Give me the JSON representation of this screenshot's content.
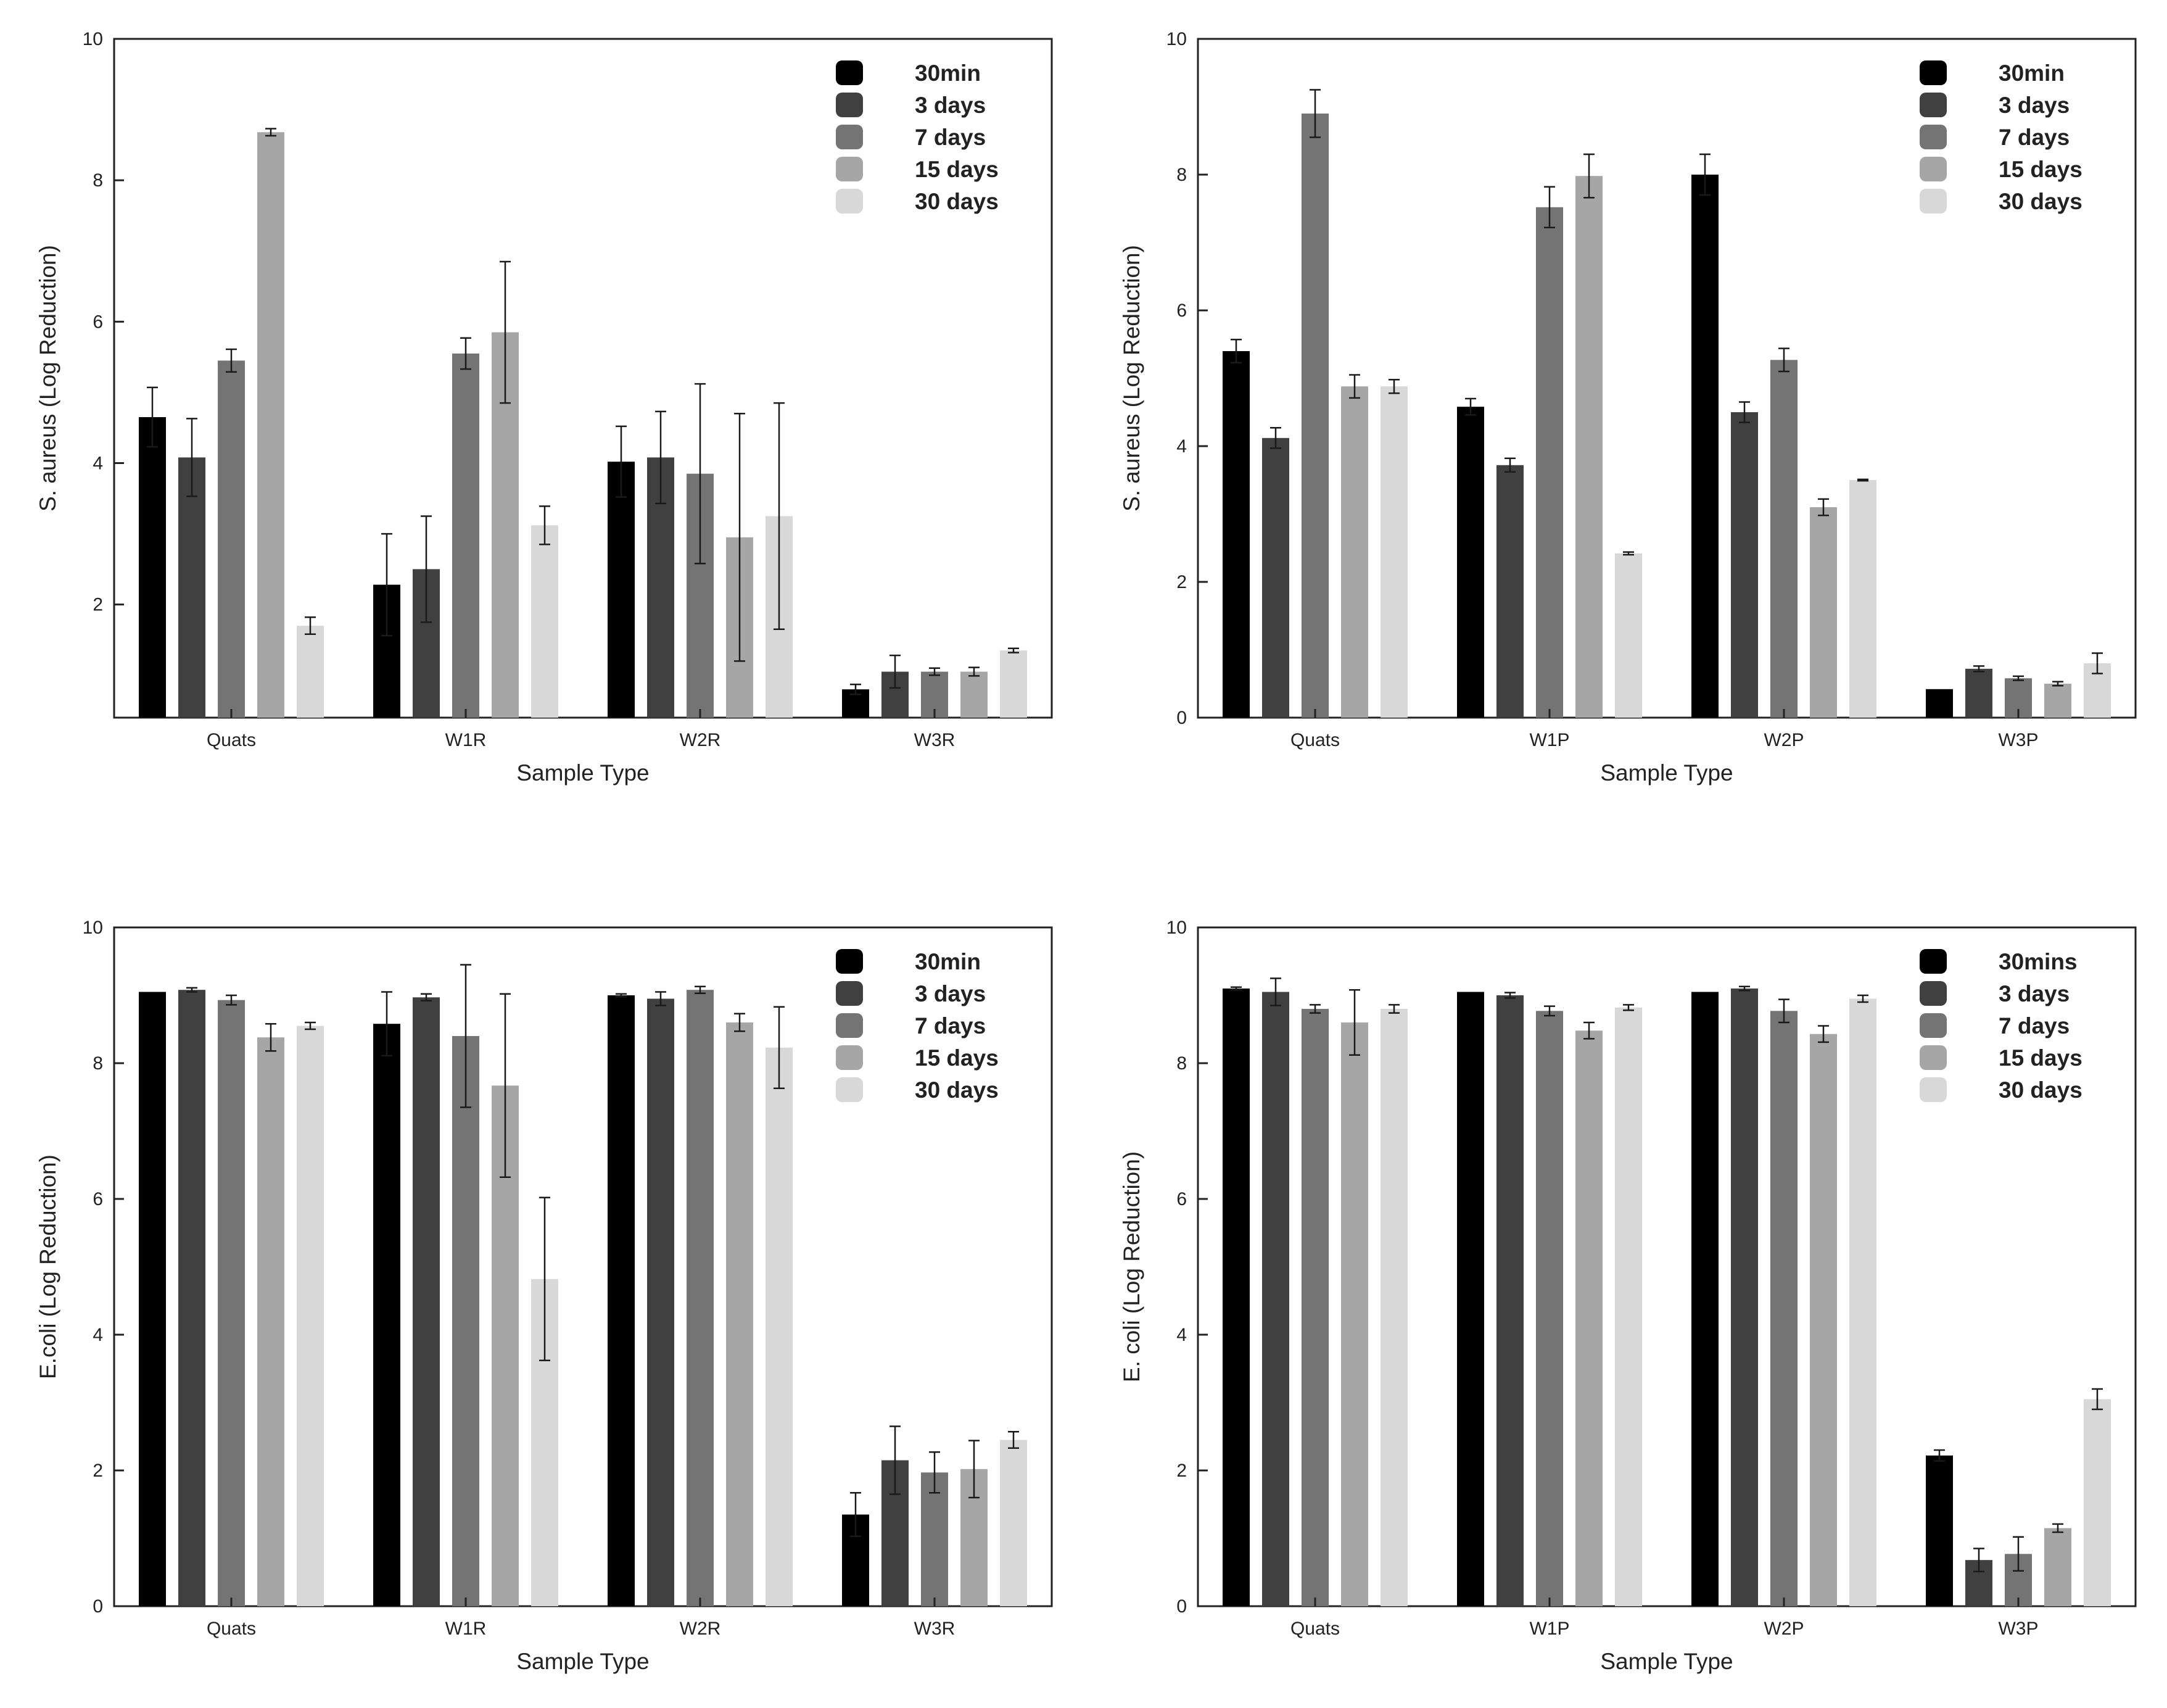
{
  "chart_data": [
    {
      "type": "bar",
      "title": "",
      "xlabel": "Sample Type",
      "ylabel": "S. aureus (Log Reduction)",
      "ylim": [
        0.4,
        10
      ],
      "yticks": [
        2,
        4,
        6,
        8,
        10
      ],
      "ytick_labels": [
        "2",
        "4",
        "6",
        "8",
        "10"
      ],
      "categories": [
        "Quats",
        "W1R",
        "W2R",
        "W3R"
      ],
      "legend": {
        "position": "top-right"
      },
      "series": [
        {
          "name": "30min",
          "color": "#000000",
          "values": [
            4.65,
            2.28,
            4.02,
            0.8
          ],
          "errors": [
            0.42,
            0.72,
            0.5,
            0.07
          ]
        },
        {
          "name": "3 days",
          "color": "#404040",
          "values": [
            4.08,
            2.5,
            4.08,
            1.05
          ],
          "errors": [
            0.55,
            0.75,
            0.65,
            0.23
          ]
        },
        {
          "name": "7 days",
          "color": "#747474",
          "values": [
            5.45,
            5.55,
            3.85,
            1.05
          ],
          "errors": [
            0.16,
            0.22,
            1.27,
            0.05
          ]
        },
        {
          "name": "15 days",
          "color": "#a6a6a6",
          "values": [
            8.68,
            5.85,
            2.95,
            1.05
          ],
          "errors": [
            0.05,
            1.0,
            1.75,
            0.06
          ]
        },
        {
          "name": "30 days",
          "color": "#d8d8d8",
          "values": [
            1.7,
            3.12,
            3.25,
            1.35
          ],
          "errors": [
            0.12,
            0.27,
            1.6,
            0.03
          ]
        }
      ]
    },
    {
      "type": "bar",
      "title": "",
      "xlabel": "Sample Type",
      "ylabel": "S. aureus (Log Reduction)",
      "ylim": [
        0,
        10
      ],
      "yticks": [
        0,
        2,
        4,
        6,
        8,
        10
      ],
      "ytick_labels": [
        "0",
        "2",
        "4",
        "6",
        "8",
        "10"
      ],
      "categories": [
        "Quats",
        "W1P",
        "W2P",
        "W3P"
      ],
      "legend": {
        "position": "top-right"
      },
      "series": [
        {
          "name": "30min",
          "color": "#000000",
          "values": [
            5.4,
            4.58,
            8.0,
            0.42
          ],
          "errors": [
            0.17,
            0.12,
            0.3,
            0.0
          ]
        },
        {
          "name": "3 days",
          "color": "#404040",
          "values": [
            4.12,
            3.72,
            4.5,
            0.72
          ],
          "errors": [
            0.15,
            0.1,
            0.15,
            0.04
          ]
        },
        {
          "name": "7 days",
          "color": "#747474",
          "values": [
            8.9,
            7.52,
            5.27,
            0.58
          ],
          "errors": [
            0.35,
            0.3,
            0.17,
            0.03
          ]
        },
        {
          "name": "15 days",
          "color": "#a6a6a6",
          "values": [
            4.88,
            7.98,
            3.1,
            0.5
          ],
          "errors": [
            0.17,
            0.32,
            0.12,
            0.03
          ]
        },
        {
          "name": "30 days",
          "color": "#d8d8d8",
          "values": [
            4.88,
            2.42,
            3.5,
            0.8
          ],
          "errors": [
            0.1,
            0.02,
            0.01,
            0.15
          ]
        }
      ]
    },
    {
      "type": "bar",
      "title": "",
      "xlabel": "Sample Type",
      "ylabel": "E.coli (Log Reduction)",
      "ylim": [
        0,
        10
      ],
      "yticks": [
        0,
        2,
        4,
        6,
        8,
        10
      ],
      "ytick_labels": [
        "0",
        "2",
        "4",
        "6",
        "8",
        "10"
      ],
      "categories": [
        "Quats",
        "W1R",
        "W2R",
        "W3R"
      ],
      "legend": {
        "position": "top-right"
      },
      "series": [
        {
          "name": "30min",
          "color": "#000000",
          "values": [
            9.05,
            8.58,
            9.0,
            1.35
          ],
          "errors": [
            0.0,
            0.47,
            0.02,
            0.32
          ]
        },
        {
          "name": "3 days",
          "color": "#404040",
          "values": [
            9.08,
            8.97,
            8.95,
            2.15
          ],
          "errors": [
            0.03,
            0.05,
            0.1,
            0.5
          ]
        },
        {
          "name": "7 days",
          "color": "#747474",
          "values": [
            8.93,
            8.4,
            9.08,
            1.97
          ],
          "errors": [
            0.07,
            1.05,
            0.05,
            0.3
          ]
        },
        {
          "name": "15 days",
          "color": "#a6a6a6",
          "values": [
            8.38,
            7.67,
            8.6,
            2.02
          ],
          "errors": [
            0.2,
            1.35,
            0.13,
            0.42
          ]
        },
        {
          "name": "30 days",
          "color": "#d8d8d8",
          "values": [
            8.55,
            4.82,
            8.23,
            2.45
          ],
          "errors": [
            0.05,
            1.2,
            0.6,
            0.12
          ]
        }
      ]
    },
    {
      "type": "bar",
      "title": "",
      "xlabel": "Sample Type",
      "ylabel": "E. coli (Log Reduction)",
      "ylim": [
        0,
        10
      ],
      "yticks": [
        0,
        2,
        4,
        6,
        8,
        10
      ],
      "ytick_labels": [
        "0",
        "2",
        "4",
        "6",
        "8",
        "10"
      ],
      "categories": [
        "Quats",
        "W1P",
        "W2P",
        "W3P"
      ],
      "legend": {
        "position": "top-right"
      },
      "series": [
        {
          "name": "30mins",
          "color": "#000000",
          "values": [
            9.1,
            9.05,
            9.05,
            2.22
          ],
          "errors": [
            0.02,
            0.0,
            0.0,
            0.08
          ]
        },
        {
          "name": "3 days",
          "color": "#404040",
          "values": [
            9.05,
            9.0,
            9.1,
            0.68
          ],
          "errors": [
            0.2,
            0.04,
            0.03,
            0.17
          ]
        },
        {
          "name": "7 days",
          "color": "#747474",
          "values": [
            8.8,
            8.77,
            8.77,
            0.77
          ],
          "errors": [
            0.06,
            0.07,
            0.17,
            0.25
          ]
        },
        {
          "name": "15 days",
          "color": "#a6a6a6",
          "values": [
            8.6,
            8.48,
            8.43,
            1.15
          ],
          "errors": [
            0.48,
            0.12,
            0.12,
            0.06
          ]
        },
        {
          "name": "30 days",
          "color": "#d8d8d8",
          "values": [
            8.8,
            8.82,
            8.95,
            3.05
          ],
          "errors": [
            0.06,
            0.04,
            0.05,
            0.15
          ]
        }
      ]
    }
  ]
}
